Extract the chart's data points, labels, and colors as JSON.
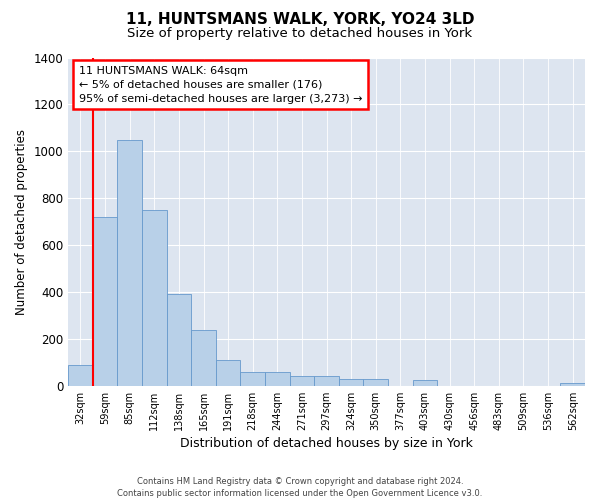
{
  "title": "11, HUNTSMANS WALK, YORK, YO24 3LD",
  "subtitle": "Size of property relative to detached houses in York",
  "xlabel": "Distribution of detached houses by size in York",
  "ylabel": "Number of detached properties",
  "footer_line1": "Contains HM Land Registry data © Crown copyright and database right 2024.",
  "footer_line2": "Contains public sector information licensed under the Open Government Licence v3.0.",
  "annotation_line1": "11 HUNTSMANS WALK: 64sqm",
  "annotation_line2": "← 5% of detached houses are smaller (176)",
  "annotation_line3": "95% of semi-detached houses are larger (3,273) →",
  "bar_color": "#b8d0e8",
  "bar_edge_color": "#6699cc",
  "vline_color": "red",
  "annotation_box_edgecolor": "red",
  "background_color": "#dde5f0",
  "categories": [
    "32sqm",
    "59sqm",
    "85sqm",
    "112sqm",
    "138sqm",
    "165sqm",
    "191sqm",
    "218sqm",
    "244sqm",
    "271sqm",
    "297sqm",
    "324sqm",
    "350sqm",
    "377sqm",
    "403sqm",
    "430sqm",
    "456sqm",
    "483sqm",
    "509sqm",
    "536sqm",
    "562sqm"
  ],
  "values": [
    90,
    720,
    1050,
    750,
    390,
    240,
    110,
    60,
    60,
    40,
    40,
    30,
    30,
    0,
    25,
    0,
    0,
    0,
    0,
    0,
    10
  ],
  "ylim": [
    0,
    1400
  ],
  "yticks": [
    0,
    200,
    400,
    600,
    800,
    1000,
    1200,
    1400
  ],
  "vline_x_index": 0.5,
  "figsize": [
    6.0,
    5.0
  ],
  "dpi": 100
}
